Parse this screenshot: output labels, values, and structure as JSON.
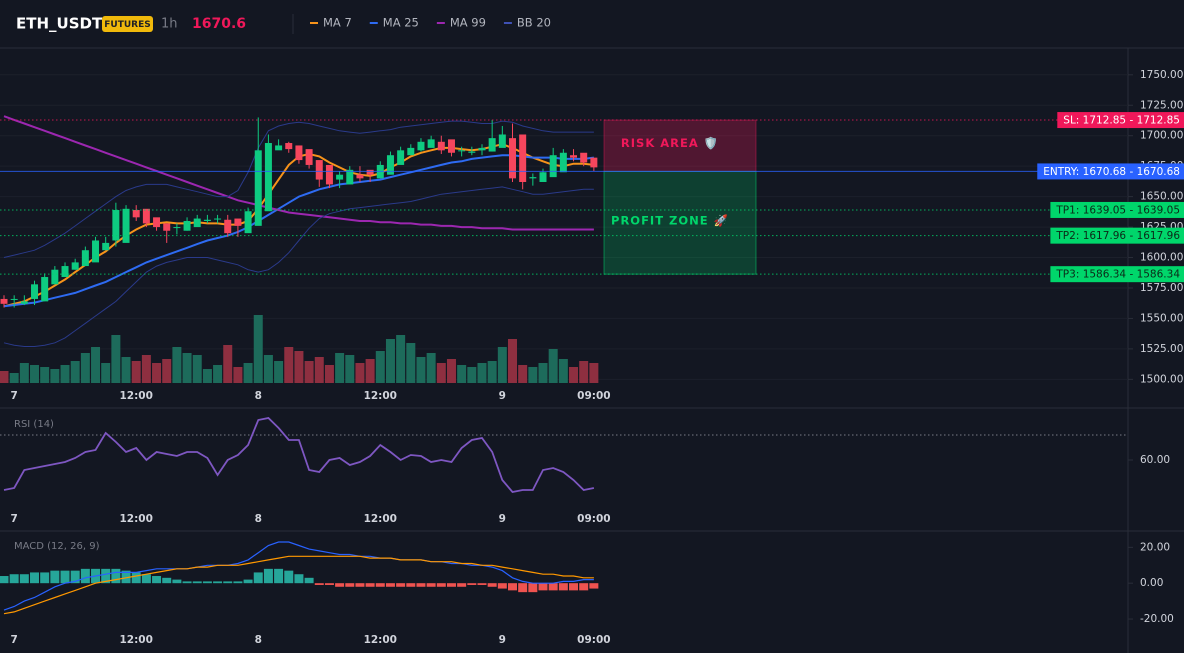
{
  "header": {
    "symbol": "ETH_USDT",
    "badge": "FUTURES",
    "interval": "1h",
    "price": 1670.6
  },
  "chart_data": [
    {
      "type": "candlestick",
      "categories": [
        null,
        "7",
        null,
        null,
        null,
        null,
        null,
        null,
        null,
        null,
        null,
        null,
        null,
        "12:00",
        null,
        null,
        null,
        null,
        null,
        null,
        null,
        null,
        null,
        null,
        null,
        "8",
        null,
        null,
        null,
        null,
        null,
        null,
        null,
        null,
        null,
        null,
        null,
        "12:00",
        null,
        null,
        null,
        null,
        null,
        null,
        null,
        null,
        null,
        null,
        null,
        "9",
        null,
        null,
        null,
        null,
        null,
        null,
        null,
        null,
        "09:00"
      ],
      "ylim": [
        1497,
        1772
      ],
      "yticks": [
        {
          "value": 1500,
          "label": "1500.00"
        },
        {
          "value": 1525,
          "label": "1525.00"
        },
        {
          "value": 1550,
          "label": "1550.00"
        },
        {
          "value": 1575,
          "label": "1575.00"
        },
        {
          "value": 1600,
          "label": "1600.00"
        },
        {
          "value": 1625,
          "label": "1625.00"
        },
        {
          "value": 1650,
          "label": "1650.00"
        },
        {
          "value": 1675,
          "label": "1675.00"
        },
        {
          "value": 1700,
          "label": "1700.00"
        },
        {
          "value": 1725,
          "label": "1725.00"
        },
        {
          "value": 1750,
          "label": "1750.00"
        }
      ],
      "grid": true,
      "candles": {
        "up_color": "#0ecb81",
        "down_color": "#f6465d",
        "open": [
          1566,
          1566,
          1562,
          1566,
          1564,
          1578,
          1584,
          1590,
          1593,
          1596,
          1606,
          1614,
          1612,
          1639,
          1640,
          1633,
          1628,
          1625,
          1622,
          1625,
          1630,
          1632,
          1631,
          1632,
          1620,
          1626,
          1638,
          1688,
          1694,
          1692,
          1689,
          1680,
          1676,
          1664,
          1660,
          1668,
          1672,
          1665,
          1668,
          1676,
          1684,
          1688,
          1690,
          1695,
          1697,
          1688,
          1686,
          1688,
          1687,
          1690,
          1698,
          1701,
          1665,
          1662,
          1666,
          1670,
          1684,
          1686,
          1682
        ],
        "high": [
          1569,
          1569,
          1569,
          1581,
          1587,
          1593,
          1596,
          1599,
          1609,
          1617,
          1617,
          1645,
          1643,
          1643,
          1636,
          1631,
          1628,
          1628,
          1633,
          1635,
          1635,
          1635,
          1635,
          1629,
          1641,
          1715,
          1701,
          1697,
          1695,
          1692,
          1683,
          1679,
          1667,
          1671,
          1675,
          1675,
          1671,
          1679,
          1687,
          1691,
          1693,
          1698,
          1700,
          1700,
          1691,
          1691,
          1691,
          1693,
          1713,
          1708,
          1710,
          1668,
          1669,
          1673,
          1690,
          1689,
          1689,
          1685,
          1681
        ],
        "low": [
          1559,
          1559,
          1561,
          1561,
          1575,
          1581,
          1587,
          1590,
          1593,
          1603,
          1609,
          1609,
          1636,
          1630,
          1625,
          1622,
          1612,
          1619,
          1622,
          1627,
          1628,
          1628,
          1617,
          1617,
          1623,
          1635,
          1685,
          1689,
          1686,
          1677,
          1673,
          1658,
          1657,
          1657,
          1665,
          1662,
          1662,
          1665,
          1673,
          1681,
          1685,
          1687,
          1692,
          1685,
          1683,
          1683,
          1684,
          1684,
          1687,
          1695,
          1662,
          1656,
          1659,
          1663,
          1667,
          1681,
          1679,
          1675,
          1671
        ],
        "close": [
          1562,
          1566,
          1564,
          1578,
          1584,
          1590,
          1593,
          1596,
          1606,
          1614,
          1612,
          1639,
          1640,
          1633,
          1628,
          1625,
          1622,
          1625,
          1630,
          1632,
          1631,
          1632,
          1620,
          1626,
          1638,
          1688,
          1694,
          1692,
          1689,
          1680,
          1676,
          1664,
          1660,
          1668,
          1672,
          1665,
          1668,
          1676,
          1684,
          1688,
          1690,
          1695,
          1697,
          1688,
          1686,
          1688,
          1687,
          1690,
          1698,
          1701,
          1665,
          1662,
          1666,
          1670,
          1684,
          1686,
          1682,
          1678,
          1674
        ]
      },
      "overlays": [
        {
          "name": "MA 7",
          "color": "#f7931a",
          "values": [
            1560,
            1562,
            1564,
            1568,
            1572,
            1577,
            1582,
            1588,
            1594,
            1600,
            1605,
            1612,
            1618,
            1623,
            1627,
            1628,
            1629,
            1628,
            1628,
            1629,
            1628,
            1628,
            1627,
            1627,
            1630,
            1640,
            1652,
            1664,
            1676,
            1683,
            1685,
            1683,
            1678,
            1674,
            1670,
            1668,
            1667,
            1669,
            1674,
            1678,
            1683,
            1686,
            1688,
            1690,
            1690,
            1689,
            1688,
            1689,
            1691,
            1693,
            1690,
            1686,
            1682,
            1679,
            1676,
            1675,
            1677,
            1677,
            1676
          ]
        },
        {
          "name": "MA 25",
          "color": "#2e6bf2",
          "values": [
            1560,
            1561,
            1562,
            1563,
            1565,
            1567,
            1569,
            1571,
            1574,
            1577,
            1580,
            1584,
            1588,
            1592,
            1596,
            1599,
            1602,
            1605,
            1608,
            1611,
            1614,
            1616,
            1618,
            1621,
            1625,
            1630,
            1635,
            1640,
            1645,
            1650,
            1653,
            1656,
            1658,
            1660,
            1661,
            1662,
            1663,
            1664,
            1666,
            1668,
            1670,
            1672,
            1674,
            1676,
            1678,
            1679,
            1681,
            1682,
            1683,
            1684,
            1684,
            1683,
            1682,
            1682,
            1682,
            1681,
            1681,
            1681,
            1682
          ]
        },
        {
          "name": "MA 99",
          "color": "#9c27b0",
          "values": [
            1716,
            1713,
            1710,
            1707,
            1704,
            1701,
            1698,
            1695,
            1692,
            1689,
            1686,
            1683,
            1680,
            1677,
            1674,
            1671,
            1668,
            1665,
            1662,
            1659,
            1656,
            1653,
            1650,
            1647,
            1645,
            1643,
            1641,
            1639,
            1637,
            1636,
            1635,
            1634,
            1633,
            1632,
            1631,
            1630,
            1630,
            1629,
            1629,
            1628,
            1628,
            1627,
            1627,
            1626,
            1626,
            1625,
            1625,
            1624,
            1624,
            1624,
            1623,
            1623,
            1623,
            1623,
            1623,
            1623,
            1623,
            1623,
            1623
          ]
        },
        {
          "name": "BB 20",
          "color": "#2a3a8a",
          "upper": [
            1600,
            1602,
            1604,
            1606,
            1610,
            1615,
            1620,
            1626,
            1632,
            1638,
            1644,
            1650,
            1655,
            1658,
            1660,
            1660,
            1660,
            1658,
            1656,
            1654,
            1652,
            1650,
            1650,
            1655,
            1670,
            1690,
            1704,
            1708,
            1710,
            1711,
            1710,
            1708,
            1706,
            1704,
            1703,
            1702,
            1703,
            1704,
            1705,
            1707,
            1708,
            1709,
            1710,
            1711,
            1712,
            1712,
            1711,
            1710,
            1710,
            1712,
            1711,
            1708,
            1706,
            1704,
            1703,
            1703,
            1703,
            1703,
            1703
          ],
          "lower": [
            1530,
            1528,
            1527,
            1527,
            1528,
            1530,
            1534,
            1540,
            1546,
            1552,
            1558,
            1564,
            1572,
            1580,
            1588,
            1593,
            1596,
            1598,
            1600,
            1600,
            1600,
            1598,
            1596,
            1594,
            1590,
            1588,
            1590,
            1596,
            1604,
            1614,
            1624,
            1632,
            1636,
            1638,
            1640,
            1641,
            1642,
            1643,
            1644,
            1645,
            1646,
            1648,
            1650,
            1652,
            1653,
            1654,
            1655,
            1656,
            1657,
            1658,
            1656,
            1654,
            1652,
            1652,
            1653,
            1654,
            1655,
            1656,
            1656
          ]
        }
      ],
      "volume": {
        "up_color": "#1d6b5b",
        "down_color": "#8e2f40",
        "values": [
          12,
          10,
          20,
          18,
          16,
          14,
          18,
          22,
          30,
          36,
          20,
          48,
          26,
          22,
          28,
          20,
          24,
          36,
          30,
          28,
          14,
          18,
          38,
          16,
          20,
          68,
          28,
          22,
          36,
          32,
          22,
          26,
          18,
          30,
          28,
          20,
          24,
          32,
          44,
          48,
          40,
          26,
          30,
          20,
          24,
          18,
          16,
          20,
          22,
          36,
          44,
          18,
          16,
          20,
          34,
          24,
          16,
          22,
          20
        ]
      },
      "levels": [
        {
          "value": 1712.85,
          "tag": "SL: 1712.85 - 1712.85",
          "color": "#f0185a",
          "style": "dotted"
        },
        {
          "value": 1670.68,
          "tag": "ENTRY: 1670.68 - 1670.68",
          "color": "#2962ff",
          "style": "solid"
        },
        {
          "value": 1639.05,
          "tag": "TP1: 1639.05 - 1639.05",
          "color": "#00d66b",
          "style": "dotted"
        },
        {
          "value": 1617.96,
          "tag": "TP2: 1617.96 - 1617.96",
          "color": "#00d66b",
          "style": "dotted"
        },
        {
          "value": 1586.34,
          "tag": "TP3: 1586.34 - 1586.34",
          "color": "#00d66b",
          "style": "dotted"
        }
      ],
      "annotations": [
        "RISK AREA 🛡️",
        "PROFIT ZONE 🚀"
      ]
    },
    {
      "type": "line",
      "title": "RSI (14)",
      "color": "#7e57c2",
      "categories": [
        null,
        "7",
        null,
        null,
        null,
        null,
        null,
        null,
        null,
        null,
        null,
        null,
        null,
        "12:00",
        null,
        null,
        null,
        null,
        null,
        null,
        null,
        null,
        null,
        null,
        null,
        "8",
        null,
        null,
        null,
        null,
        null,
        null,
        null,
        null,
        null,
        null,
        null,
        "12:00",
        null,
        null,
        null,
        null,
        null,
        null,
        null,
        null,
        null,
        null,
        null,
        "9",
        null,
        null,
        null,
        null,
        null,
        null,
        null,
        null,
        "09:00"
      ],
      "ylim": [
        40,
        80
      ],
      "yticks": [
        {
          "value": 60,
          "label": "60.00"
        }
      ],
      "hlines": [
        70
      ],
      "values": [
        48,
        48.8,
        56,
        56.8,
        57.6,
        58.4,
        59.2,
        60.8,
        63.2,
        64,
        70.8,
        67.2,
        63.2,
        64.8,
        60,
        63.2,
        62.4,
        61.6,
        63.2,
        63.2,
        60.8,
        54,
        60,
        62,
        66,
        76,
        76.8,
        72.8,
        68,
        68,
        56,
        55.2,
        60,
        60.8,
        58,
        59.2,
        61.6,
        66,
        63.2,
        60,
        62,
        61.6,
        59.2,
        60,
        59.2,
        64.8,
        68,
        68.8,
        63.2,
        52,
        47.2,
        48,
        48,
        56,
        56.8,
        55.2,
        52,
        48,
        48.8
      ]
    },
    {
      "type": "macd",
      "title": "MACD (12, 26, 9)",
      "categories": [
        null,
        "7",
        null,
        null,
        null,
        null,
        null,
        null,
        null,
        null,
        null,
        null,
        null,
        "12:00",
        null,
        null,
        null,
        null,
        null,
        null,
        null,
        null,
        null,
        null,
        null,
        "8",
        null,
        null,
        null,
        null,
        null,
        null,
        null,
        null,
        null,
        null,
        null,
        "12:00",
        null,
        null,
        null,
        null,
        null,
        null,
        null,
        null,
        null,
        null,
        null,
        "9",
        null,
        null,
        null,
        null,
        null,
        null,
        null,
        null,
        "09:00"
      ],
      "ylim": [
        -25,
        28
      ],
      "yticks": [
        {
          "value": 20,
          "label": "20.00"
        },
        {
          "value": 0,
          "label": "0.00"
        },
        {
          "value": -20,
          "label": "-20.00"
        }
      ],
      "histogram": {
        "up_color": "#26a69a",
        "down_color": "#ef5350",
        "values": [
          4,
          5,
          5,
          6,
          6,
          7,
          7,
          7,
          8,
          8,
          8,
          8,
          7,
          6,
          5,
          4,
          3,
          2,
          1,
          1,
          1,
          1,
          1,
          1,
          2,
          6,
          8,
          8,
          7,
          5,
          3,
          -1,
          -1,
          -2,
          -2,
          -2,
          -2,
          -2,
          -2,
          -2,
          -2,
          -2,
          -2,
          -2,
          -2,
          -2,
          -1,
          -1,
          -2,
          -3,
          -4,
          -5,
          -5,
          -4,
          -4,
          -4,
          -4,
          -4,
          -3
        ]
      },
      "series": [
        {
          "color": "#2962ff",
          "values": [
            -15,
            -13,
            -10,
            -8,
            -5,
            -2,
            0,
            1,
            3,
            4,
            5,
            6,
            6,
            6,
            7,
            8,
            8,
            8,
            8,
            9,
            10,
            10,
            10,
            11,
            13,
            17,
            21,
            23,
            23,
            21,
            19,
            18,
            17,
            16,
            16,
            15,
            15,
            14,
            14,
            13,
            13,
            13,
            12,
            12,
            11,
            11,
            10,
            10,
            9,
            7,
            3,
            1,
            0,
            0,
            0,
            1,
            1,
            2,
            2
          ]
        },
        {
          "color": "#ff9800",
          "values": [
            -17,
            -16,
            -14,
            -12,
            -10,
            -8,
            -6,
            -4,
            -2,
            0,
            1,
            2,
            3,
            4,
            5,
            6,
            7,
            8,
            8,
            9,
            9,
            10,
            10,
            10,
            11,
            12,
            13,
            14,
            15,
            15,
            15,
            15,
            15,
            15,
            15,
            15,
            14,
            14,
            14,
            13,
            13,
            13,
            12,
            12,
            12,
            11,
            11,
            10,
            10,
            9,
            8,
            7,
            6,
            5,
            5,
            4,
            4,
            3,
            3
          ]
        }
      ]
    }
  ]
}
